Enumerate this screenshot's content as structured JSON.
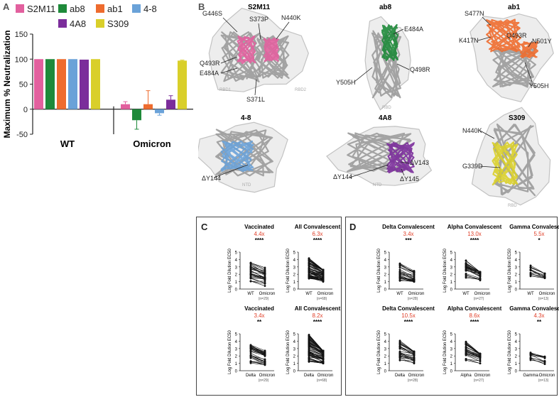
{
  "panels": {
    "A": {
      "letter": "A"
    },
    "B": {
      "letter": "B"
    },
    "C": {
      "letter": "C"
    },
    "D": {
      "letter": "D"
    }
  },
  "colors": {
    "S2M11": "#e2609e",
    "ab8": "#1e8a3a",
    "ab1": "#ee6b2e",
    "4-8": "#6aa2d8",
    "4A8": "#7b2d9b",
    "S309": "#d9cf2a"
  },
  "chart_data": [
    {
      "type": "bar",
      "panel": "A",
      "ylabel": "Maximum % Neutralization",
      "ylim": [
        -50,
        150
      ],
      "yticks": [
        -50,
        0,
        50,
        100,
        150
      ],
      "categories": [
        "WT",
        "Omicron"
      ],
      "legend": [
        "S2M11",
        "ab8",
        "ab1",
        "4-8",
        "4A8",
        "S309"
      ],
      "series": [
        {
          "name": "S2M11",
          "values": [
            100,
            10
          ],
          "errors": [
            0,
            5
          ]
        },
        {
          "name": "ab8",
          "values": [
            100,
            -22
          ],
          "errors": [
            0,
            18
          ]
        },
        {
          "name": "ab1",
          "values": [
            100,
            10
          ],
          "errors": [
            0,
            27
          ]
        },
        {
          "name": "4-8",
          "values": [
            100,
            -8
          ],
          "errors": [
            0,
            4
          ]
        },
        {
          "name": "4A8",
          "values": [
            99,
            19
          ],
          "errors": [
            0,
            8
          ]
        },
        {
          "name": "S309",
          "values": [
            100,
            97
          ],
          "errors": [
            0,
            1
          ]
        }
      ]
    },
    {
      "type": "line",
      "panel": "C-D",
      "ylabel": "Log Fold Dilution EC50",
      "ylim": [
        0,
        5
      ],
      "yticks": [
        0,
        1,
        2,
        3,
        4,
        5
      ],
      "subplots": [
        {
          "id": "c-vacc-wt",
          "title": "Vaccinated",
          "fold": "4.4x",
          "sig": "****",
          "xlabels": [
            "WT",
            "Omicron"
          ],
          "n": "(n=29)",
          "count": 29,
          "left": [
            1.0,
            3.7
          ],
          "right": [
            0.3,
            2.9
          ]
        },
        {
          "id": "c-conv-wt",
          "title": "All Convalescent",
          "fold": "6.3x",
          "sig": "****",
          "xlabels": [
            "WT",
            "Omicron"
          ],
          "n": "(n=68)",
          "count": 68,
          "left": [
            1.4,
            4.3
          ],
          "right": [
            1.0,
            2.6
          ]
        },
        {
          "id": "c-vacc-delta",
          "title": "Vaccinated",
          "fold": "3.4x",
          "sig": "**",
          "xlabels": [
            "Delta",
            "Omicron"
          ],
          "n": "(n=29)",
          "count": 29,
          "left": [
            0.8,
            3.6
          ],
          "right": [
            0.1,
            2.9
          ]
        },
        {
          "id": "c-conv-delta",
          "title": "All Convalescent",
          "fold": "8.2x",
          "sig": "****",
          "xlabels": [
            "Delta",
            "Omicron"
          ],
          "n": "(n=68)",
          "count": 68,
          "left": [
            1.2,
            4.9
          ],
          "right": [
            1.0,
            2.7
          ]
        },
        {
          "id": "d-delta-wt",
          "title": "Delta Convalescent",
          "fold": "3.4x",
          "sig": "***",
          "xlabels": [
            "WT",
            "Omicron"
          ],
          "n": "(n=28)",
          "count": 28,
          "left": [
            1.0,
            3.5
          ],
          "right": [
            1.0,
            2.6
          ]
        },
        {
          "id": "d-alpha-wt",
          "title": "Alpha Convalescent",
          "fold": "13.0x",
          "sig": "****",
          "xlabels": [
            "WT",
            "Omicron"
          ],
          "n": "(n=27)",
          "count": 27,
          "left": [
            1.5,
            4.0
          ],
          "right": [
            1.0,
            2.3
          ]
        },
        {
          "id": "d-gamma-wt",
          "title": "Gamma Convalescent",
          "fold": "5.5x",
          "sig": "*",
          "xlabels": [
            "WT",
            "Omicron"
          ],
          "n": "(n=13)",
          "count": 13,
          "left": [
            1.5,
            3.2
          ],
          "right": [
            1.0,
            2.1
          ]
        },
        {
          "id": "d-delta-delta",
          "title": "Delta Convalescent",
          "fold": "10.5x",
          "sig": "****",
          "xlabels": [
            "Delta",
            "Omicron"
          ],
          "n": "(n=28)",
          "count": 28,
          "left": [
            1.3,
            4.1
          ],
          "right": [
            1.0,
            2.6
          ]
        },
        {
          "id": "d-alpha-alpha",
          "title": "Alpha Convalescent",
          "fold": "8.6x",
          "sig": "****",
          "xlabels": [
            "Alpha",
            "Omicron"
          ],
          "n": "(n=27)",
          "count": 27,
          "left": [
            1.3,
            4.2
          ],
          "right": [
            1.0,
            2.3
          ]
        },
        {
          "id": "d-gamma-gamma",
          "title": "Gamma Convalescent",
          "fold": "4.3x",
          "sig": "**",
          "xlabels": [
            "Gamma",
            "Omicron"
          ],
          "n": "(n=13)",
          "count": 13,
          "left": [
            1.2,
            2.5
          ],
          "right": [
            0.9,
            2.0
          ]
        }
      ]
    }
  ],
  "structures": [
    {
      "id": "s2m11",
      "title": "S2M11",
      "color": "#e2609e",
      "labels": [
        "G446S",
        "S373P",
        "N440K",
        "Q493R",
        "E484A",
        "S371L"
      ],
      "corner": [
        "RBD1",
        "RBD2"
      ]
    },
    {
      "id": "ab8",
      "title": "ab8",
      "color": "#1e8a3a",
      "labels": [
        "E484A",
        "Y505H",
        "Q498R"
      ],
      "corner": [
        "RBD"
      ]
    },
    {
      "id": "ab1",
      "title": "ab1",
      "color": "#ee6b2e",
      "labels": [
        "S477N",
        "Q493R",
        "K417N",
        "N501Y",
        "Y505H"
      ],
      "corner": []
    },
    {
      "id": "f48",
      "title": "4-8",
      "color": "#6aa2d8",
      "labels": [
        "ΔY144"
      ],
      "corner": [
        "NTD"
      ]
    },
    {
      "id": "f4a8",
      "title": "4A8",
      "color": "#7b2d9b",
      "labels": [
        "ΔV143",
        "ΔY144",
        "ΔY145"
      ],
      "corner": [
        "NTD"
      ]
    },
    {
      "id": "s309",
      "title": "S309",
      "color": "#d9cf2a",
      "labels": [
        "N440K",
        "G339D"
      ],
      "corner": [
        "RBD"
      ]
    }
  ]
}
